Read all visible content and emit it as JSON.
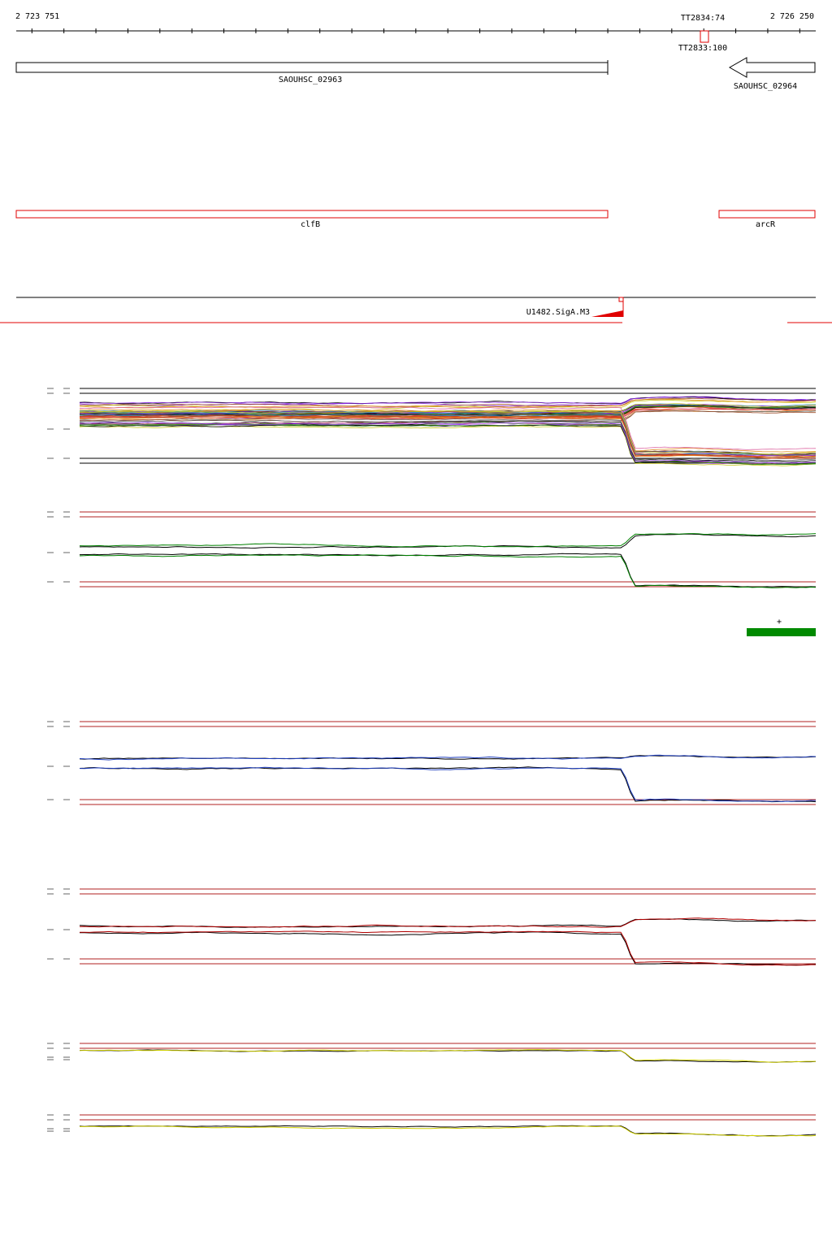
{
  "chart_data": {
    "type": "line",
    "title": "",
    "genome_range": {
      "start": 2723751,
      "end": 2726250
    },
    "ruler": {
      "start_label": "2 723 751",
      "end_label": "2 726 250",
      "terminators": [
        {
          "label": "TT2834:74",
          "position": 2725924,
          "strand": "+"
        },
        {
          "label": "TT2833:100",
          "position": 2725924,
          "strand": "-"
        }
      ]
    },
    "genes": [
      {
        "name": "SAOUHSC_02963",
        "start": 2723751,
        "end": 2725599,
        "strand": "+"
      },
      {
        "name": "SAOUHSC_02964",
        "start": 2725949,
        "end": 2726250,
        "strand": "-"
      }
    ],
    "gene_names": [
      {
        "name": "clfB",
        "start": 2723751,
        "end": 2725599
      },
      {
        "name": "arcR",
        "start": 2725949,
        "end": 2726250
      }
    ],
    "promoter": {
      "label": "U1482.SigA.M3",
      "position": 2725646,
      "strand": "+"
    },
    "up_shift_marker": {
      "label": "+",
      "start": 2726034,
      "end": 2726250
    },
    "panels": [
      {
        "id": "all_conditions",
        "series_colors": [
          "#000000",
          "#d23c1e",
          "#3c8c1e",
          "#8a2be2",
          "#e08c1e",
          "#1e8cc8",
          "#a0502d",
          "#c8c81e",
          "#dc64a0",
          "#646464"
        ],
        "upper_level": 5.6,
        "upper_after": 6.0,
        "lower_level": 5.2,
        "lower_after": 2.8
      },
      {
        "id": "condition_green",
        "series_colors": [
          "#000000",
          "#008000"
        ],
        "upper_level": 4.9,
        "upper_after": 5.6,
        "lower_level": 4.3,
        "lower_after": 2.4
      },
      {
        "id": "condition_blue",
        "series_colors": [
          "#000000",
          "#1f3fbf"
        ],
        "upper_level": 4.9,
        "upper_after": 5.0,
        "lower_level": 4.4,
        "lower_after": 2.6
      },
      {
        "id": "condition_red",
        "series_colors": [
          "#000000",
          "#b00000"
        ],
        "upper_level": 4.7,
        "upper_after": 5.1,
        "lower_level": 4.3,
        "lower_after": 2.4
      },
      {
        "id": "condition_yellow_upper",
        "series_colors": [
          "#000000",
          "#d0d000"
        ],
        "upper_level": 5.8,
        "upper_after": 4.9,
        "lower_level": null,
        "lower_after": null
      },
      {
        "id": "condition_yellow_lower",
        "series_colors": [
          "#000000",
          "#d0d000"
        ],
        "upper_level": 5.2,
        "upper_after": 4.6,
        "lower_level": null,
        "lower_after": null
      }
    ]
  }
}
